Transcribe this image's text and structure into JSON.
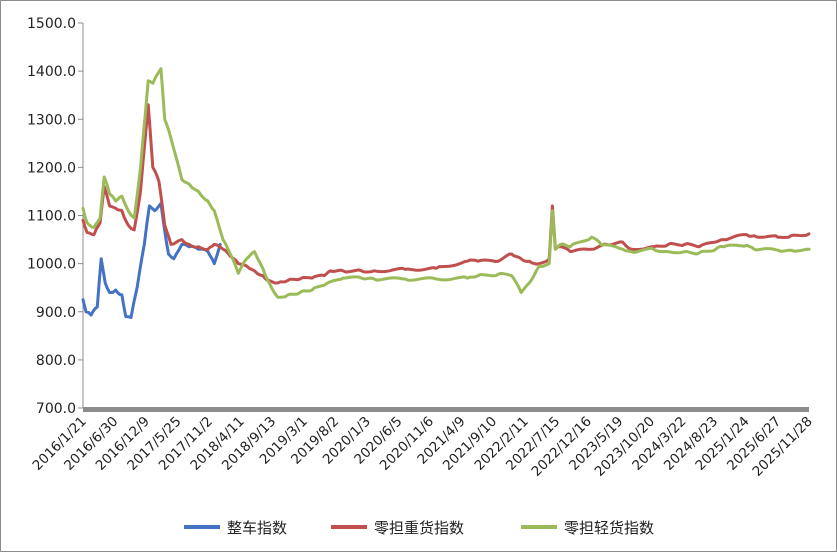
{
  "chart_data": {
    "type": "line",
    "title": "",
    "xlabel": "",
    "ylabel": "",
    "ylim": [
      700,
      1500
    ],
    "yticks": [
      700,
      800,
      900,
      1000,
      1100,
      1200,
      1300,
      1400,
      1500
    ],
    "ytick_labels": [
      "700.0",
      "800.0",
      "900.0",
      "1000.0",
      "1100.0",
      "1200.0",
      "1300.0",
      "1400.0",
      "1500.0"
    ],
    "x_range": [
      "2016-01-21",
      "2025-11-28"
    ],
    "xtick_labels": [
      "2016/1/21",
      "2016/6/30",
      "2016/12/9",
      "2017/5/25",
      "2017/11/2",
      "2018/4/11",
      "2018/9/13",
      "2019/3/1",
      "2019/8/2",
      "2020/1/3",
      "2020/6/5",
      "2020/11/6",
      "2021/4/9",
      "2021/9/10",
      "2022/2/11",
      "2022/7/15",
      "2022/12/16",
      "2023/5/19",
      "2023/10/20",
      "2024/3/22",
      "2024/8/23",
      "2025/1/24",
      "2025/6/27",
      "2025/11/28"
    ],
    "legend_position": "bottom",
    "grid": false,
    "series": [
      {
        "name": "整车指数",
        "color": "#4472c4",
        "points": [
          [
            "2016-01-21",
            925
          ],
          [
            "2016-02-05",
            900
          ],
          [
            "2016-03-01",
            893
          ],
          [
            "2016-04-01",
            910
          ],
          [
            "2016-04-20",
            1010
          ],
          [
            "2016-05-10",
            960
          ],
          [
            "2016-06-01",
            940
          ],
          [
            "2016-07-01",
            945
          ],
          [
            "2016-08-01",
            935
          ],
          [
            "2016-08-20",
            890
          ],
          [
            "2016-09-15",
            888
          ],
          [
            "2016-10-15",
            950
          ],
          [
            "2016-11-20",
            1040
          ],
          [
            "2016-12-15",
            1120
          ],
          [
            "2017-01-10",
            1110
          ],
          [
            "2017-02-10",
            1125
          ],
          [
            "2017-02-25",
            1080
          ],
          [
            "2017-03-20",
            1020
          ],
          [
            "2017-04-15",
            1010
          ],
          [
            "2017-05-25",
            1040
          ],
          [
            "2017-07-01",
            1035
          ],
          [
            "2017-08-15",
            1030
          ],
          [
            "2017-10-01",
            1025
          ],
          [
            "2017-11-02",
            1000
          ],
          [
            "2017-12-01",
            1040
          ]
        ]
      },
      {
        "name": "零担重货指数",
        "color": "#c0504d",
        "points": [
          [
            "2016-01-21",
            1090
          ],
          [
            "2016-02-10",
            1065
          ],
          [
            "2016-03-15",
            1060
          ],
          [
            "2016-04-15",
            1085
          ],
          [
            "2016-05-05",
            1160
          ],
          [
            "2016-06-01",
            1120
          ],
          [
            "2016-07-01",
            1115
          ],
          [
            "2016-08-01",
            1110
          ],
          [
            "2016-09-01",
            1080
          ],
          [
            "2016-10-01",
            1070
          ],
          [
            "2016-11-01",
            1150
          ],
          [
            "2016-12-09",
            1330
          ],
          [
            "2017-01-01",
            1200
          ],
          [
            "2017-02-01",
            1170
          ],
          [
            "2017-03-01",
            1080
          ],
          [
            "2017-04-01",
            1040
          ],
          [
            "2017-05-25",
            1050
          ],
          [
            "2017-07-01",
            1040
          ],
          [
            "2017-08-15",
            1035
          ],
          [
            "2017-10-01",
            1030
          ],
          [
            "2017-11-02",
            1040
          ],
          [
            "2017-12-15",
            1030
          ],
          [
            "2018-01-20",
            1015
          ],
          [
            "2018-03-01",
            1000
          ],
          [
            "2018-04-11",
            995
          ],
          [
            "2018-05-20",
            985
          ],
          [
            "2018-07-01",
            975
          ],
          [
            "2018-08-01",
            965
          ],
          [
            "2018-09-13",
            960
          ],
          [
            "2018-11-01",
            965
          ],
          [
            "2019-01-01",
            968
          ],
          [
            "2019-03-01",
            970
          ],
          [
            "2019-05-01",
            975
          ],
          [
            "2019-06-01",
            985
          ],
          [
            "2019-08-02",
            985
          ],
          [
            "2019-11-01",
            985
          ],
          [
            "2020-01-03",
            985
          ],
          [
            "2020-06-05",
            988
          ],
          [
            "2020-11-06",
            990
          ],
          [
            "2021-04-09",
            1005
          ],
          [
            "2021-06-01",
            1005
          ],
          [
            "2021-09-10",
            1005
          ],
          [
            "2021-11-15",
            1020
          ],
          [
            "2022-01-01",
            1010
          ],
          [
            "2022-02-11",
            1005
          ],
          [
            "2022-04-01",
            1000
          ],
          [
            "2022-05-20",
            1010
          ],
          [
            "2022-06-05",
            1120
          ],
          [
            "2022-06-20",
            1030
          ],
          [
            "2022-07-15",
            1035
          ],
          [
            "2022-09-01",
            1025
          ],
          [
            "2022-12-16",
            1030
          ],
          [
            "2023-03-01",
            1040
          ],
          [
            "2023-05-19",
            1045
          ],
          [
            "2023-07-01",
            1030
          ],
          [
            "2023-10-20",
            1035
          ],
          [
            "2024-01-01",
            1040
          ],
          [
            "2024-03-22",
            1040
          ],
          [
            "2024-06-01",
            1035
          ],
          [
            "2024-08-23",
            1045
          ],
          [
            "2024-10-01",
            1050
          ],
          [
            "2025-01-24",
            1060
          ],
          [
            "2025-03-01",
            1058
          ],
          [
            "2025-06-27",
            1055
          ],
          [
            "2025-09-01",
            1058
          ],
          [
            "2025-11-28",
            1062
          ]
        ]
      },
      {
        "name": "零担轻货指数",
        "color": "#9bbb59",
        "points": [
          [
            "2016-01-21",
            1115
          ],
          [
            "2016-02-10",
            1085
          ],
          [
            "2016-03-15",
            1075
          ],
          [
            "2016-04-15",
            1095
          ],
          [
            "2016-05-05",
            1180
          ],
          [
            "2016-06-01",
            1145
          ],
          [
            "2016-07-01",
            1130
          ],
          [
            "2016-08-01",
            1140
          ],
          [
            "2016-09-01",
            1110
          ],
          [
            "2016-10-01",
            1095
          ],
          [
            "2016-11-01",
            1200
          ],
          [
            "2016-12-09",
            1380
          ],
          [
            "2017-01-01",
            1375
          ],
          [
            "2017-02-10",
            1405
          ],
          [
            "2017-03-01",
            1300
          ],
          [
            "2017-04-01",
            1260
          ],
          [
            "2017-05-25",
            1175
          ],
          [
            "2017-07-01",
            1165
          ],
          [
            "2017-08-15",
            1150
          ],
          [
            "2017-10-01",
            1130
          ],
          [
            "2017-11-02",
            1110
          ],
          [
            "2017-12-15",
            1050
          ],
          [
            "2018-01-20",
            1020
          ],
          [
            "2018-03-01",
            980
          ],
          [
            "2018-04-11",
            1010
          ],
          [
            "2018-05-20",
            1025
          ],
          [
            "2018-07-01",
            990
          ],
          [
            "2018-08-01",
            960
          ],
          [
            "2018-09-13",
            930
          ],
          [
            "2018-11-01",
            935
          ],
          [
            "2019-01-01",
            940
          ],
          [
            "2019-03-01",
            945
          ],
          [
            "2019-05-01",
            955
          ],
          [
            "2019-08-02",
            970
          ],
          [
            "2019-11-01",
            970
          ],
          [
            "2020-01-03",
            968
          ],
          [
            "2020-06-05",
            968
          ],
          [
            "2020-11-06",
            968
          ],
          [
            "2021-04-09",
            970
          ],
          [
            "2021-06-01",
            975
          ],
          [
            "2021-09-10",
            978
          ],
          [
            "2021-11-15",
            975
          ],
          [
            "2022-01-01",
            940
          ],
          [
            "2022-02-11",
            960
          ],
          [
            "2022-04-01",
            995
          ],
          [
            "2022-05-20",
            1000
          ],
          [
            "2022-06-05",
            1110
          ],
          [
            "2022-06-20",
            1030
          ],
          [
            "2022-07-15",
            1040
          ],
          [
            "2022-09-01",
            1035
          ],
          [
            "2022-12-16",
            1055
          ],
          [
            "2023-02-01",
            1040
          ],
          [
            "2023-05-19",
            1030
          ],
          [
            "2023-07-01",
            1025
          ],
          [
            "2023-10-20",
            1030
          ],
          [
            "2024-01-01",
            1025
          ],
          [
            "2024-03-22",
            1025
          ],
          [
            "2024-06-01",
            1022
          ],
          [
            "2024-08-23",
            1030
          ],
          [
            "2024-10-01",
            1035
          ],
          [
            "2025-01-24",
            1038
          ],
          [
            "2025-03-01",
            1030
          ],
          [
            "2025-06-27",
            1028
          ],
          [
            "2025-09-01",
            1028
          ],
          [
            "2025-11-28",
            1030
          ]
        ]
      }
    ]
  }
}
